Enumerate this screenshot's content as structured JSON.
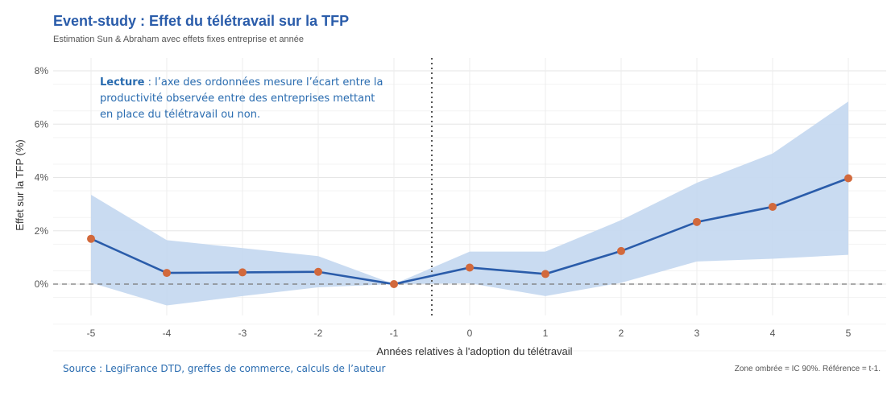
{
  "title": "Event-study : Effet du télétravail sur la TFP",
  "subtitle": "Estimation Sun & Abraham avec effets fixes entreprise et année",
  "annotation": {
    "bold": "Lecture",
    "text": " : l’axe des ordonnées mesure l’écart entre la productivité observée entre des entreprises mettant en place du télétravail ou non."
  },
  "source": "Source : LegiFrance DTD, greffes de commerce, calculs de l’auteur",
  "note": "Zone ombrée = IC 90%. Référence = t-1.",
  "colors": {
    "line": "#2a5caa",
    "points": "#d2693c",
    "band": "#c6d9f0",
    "title": "#2a5caa",
    "annotation": "#2a6cb0"
  },
  "chart_data": {
    "type": "line",
    "xlabel": "Années relatives à l'adoption du télétravail",
    "ylabel": "Effet sur la TFP (%)",
    "x": [
      -5,
      -4,
      -3,
      -2,
      -1,
      0,
      1,
      2,
      3,
      4,
      5
    ],
    "xlim": [
      -5.5,
      5.1
    ],
    "ylim": [
      -1.2,
      8.4
    ],
    "yticks": [
      0,
      2,
      4,
      6,
      8
    ],
    "ytick_labels": [
      "0%",
      "2%",
      "4%",
      "6%",
      "8%"
    ],
    "xtick_labels": [
      "-5",
      "-4",
      "-3",
      "-2",
      "-1",
      "0",
      "1",
      "2",
      "3",
      "4",
      "5"
    ],
    "series": [
      {
        "values": [
          1.7,
          0.42,
          0.44,
          0.46,
          0.0,
          0.62,
          0.38,
          1.24,
          2.33,
          2.9,
          3.97
        ],
        "ci_lower": [
          0.05,
          -0.8,
          -0.45,
          -0.12,
          0.0,
          0.03,
          -0.45,
          0.05,
          0.85,
          0.95,
          1.1
        ],
        "ci_upper": [
          3.35,
          1.65,
          1.35,
          1.05,
          0.0,
          1.22,
          1.22,
          2.4,
          3.8,
          4.9,
          6.85
        ]
      }
    ],
    "reference_lines": {
      "horizontal_y": 0,
      "vertical_x": -0.5
    },
    "grid": true
  }
}
